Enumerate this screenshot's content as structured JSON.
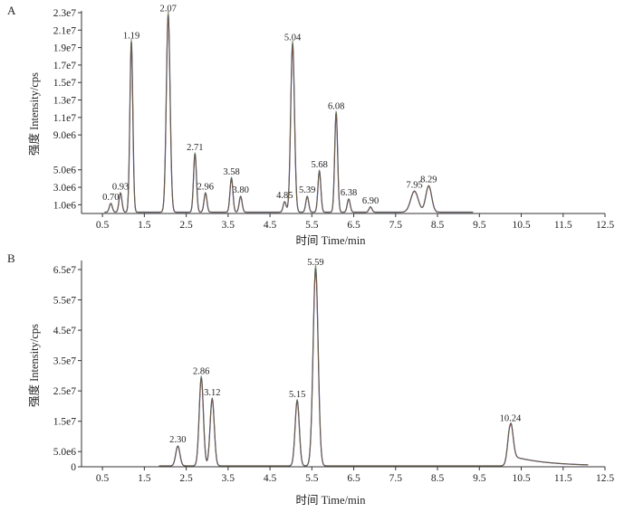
{
  "chart_data": [
    {
      "type": "line",
      "panel_label": "A",
      "xlabel": "时间  Time/min",
      "ylabel": "强度  Intensity/cps",
      "xlim": [
        0,
        12.5
      ],
      "ylim": [
        0,
        23000000.0
      ],
      "x_ticks": [
        0.5,
        1.5,
        2.5,
        3.5,
        4.5,
        5.5,
        6.5,
        7.5,
        8.5,
        9.5,
        10.5,
        11.5,
        12.5
      ],
      "x_tick_labels": [
        "0.5",
        "1.5",
        "2.5",
        "3.5",
        "4.5",
        "5.5",
        "6.5",
        "7.5",
        "8.5",
        "9.5",
        "10.5",
        "11.5",
        "12.5"
      ],
      "y_ticks": [
        1000000.0,
        3000000.0,
        5000000.0,
        9000000.0,
        11000000.0,
        13000000.0,
        15000000.0,
        17000000.0,
        19000000.0,
        21000000.0,
        23000000.0
      ],
      "y_tick_labels": [
        "1.0e6",
        "3.0e6",
        "5.0e6",
        "9.0e6",
        "1.1e7",
        "1.3e7",
        "1.5e7",
        "1.7e7",
        "1.9e7",
        "2.1e7",
        "2.3e7"
      ],
      "grid": false,
      "peaks": [
        {
          "rt": 0.7,
          "label": "0.70",
          "intensity": 1000000.0
        },
        {
          "rt": 0.93,
          "label": "0.93",
          "intensity": 2200000.0
        },
        {
          "rt": 1.19,
          "label": "1.19",
          "intensity": 19500000.0
        },
        {
          "rt": 2.07,
          "label": "2.07",
          "intensity": 22600000.0
        },
        {
          "rt": 2.71,
          "label": "2.71",
          "intensity": 6700000.0
        },
        {
          "rt": 2.96,
          "label": "2.96",
          "intensity": 2200000.0
        },
        {
          "rt": 3.58,
          "label": "3.58",
          "intensity": 3900000.0
        },
        {
          "rt": 3.8,
          "label": "3.80",
          "intensity": 1800000.0
        },
        {
          "rt": 4.85,
          "label": "4.85",
          "intensity": 1200000.0
        },
        {
          "rt": 5.04,
          "label": "5.04",
          "intensity": 19300000.0
        },
        {
          "rt": 5.39,
          "label": "5.39",
          "intensity": 1800000.0
        },
        {
          "rt": 5.68,
          "label": "5.68",
          "intensity": 4700000.0
        },
        {
          "rt": 6.08,
          "label": "6.08",
          "intensity": 11400000.0
        },
        {
          "rt": 6.38,
          "label": "6.38",
          "intensity": 1500000.0
        },
        {
          "rt": 6.9,
          "label": "6.90",
          "intensity": 600000.0
        },
        {
          "rt": 7.95,
          "label": "7.95",
          "intensity": 2400000.0
        },
        {
          "rt": 8.29,
          "label": "8.29",
          "intensity": 3000000.0
        }
      ],
      "line_colors": [
        "#3b4fb0",
        "#c0392b",
        "#5a6e3a"
      ]
    },
    {
      "type": "line",
      "panel_label": "B",
      "xlabel": "时间  Time/min",
      "ylabel": "强度  Intensity/cps",
      "xlim": [
        0,
        12.5
      ],
      "ylim": [
        0,
        65000000.0
      ],
      "x_ticks": [
        0.5,
        1.5,
        2.5,
        3.5,
        4.5,
        5.5,
        6.5,
        7.5,
        8.5,
        9.5,
        10.5,
        11.5,
        12.5
      ],
      "x_tick_labels": [
        "0.5",
        "1.5",
        "2.5",
        "3.5",
        "4.5",
        "5.5",
        "6.5",
        "7.5",
        "8.5",
        "9.5",
        "10.5",
        "11.5",
        "12.5"
      ],
      "y_ticks": [
        0,
        5000000.0,
        15000000.0,
        25000000.0,
        35000000.0,
        45000000.0,
        55000000.0,
        65000000.0
      ],
      "y_tick_labels": [
        "0",
        "5.0e6",
        "1.5e7",
        "2.5e7",
        "3.5e7",
        "4.5e7",
        "5.5e7",
        "6.5e7"
      ],
      "grid": false,
      "peaks": [
        {
          "rt": 2.3,
          "label": "2.30",
          "intensity": 6500000.0
        },
        {
          "rt": 2.86,
          "label": "2.86",
          "intensity": 29000000.0
        },
        {
          "rt": 3.12,
          "label": "3.12",
          "intensity": 22000000.0
        },
        {
          "rt": 5.15,
          "label": "5.15",
          "intensity": 21500000.0
        },
        {
          "rt": 5.59,
          "label": "5.59",
          "intensity": 65000000.0
        },
        {
          "rt": 10.24,
          "label": "10.24",
          "intensity": 13500000.0
        }
      ],
      "line_colors": [
        "#3b4fb0",
        "#c0392b",
        "#5a6e3a"
      ]
    }
  ]
}
